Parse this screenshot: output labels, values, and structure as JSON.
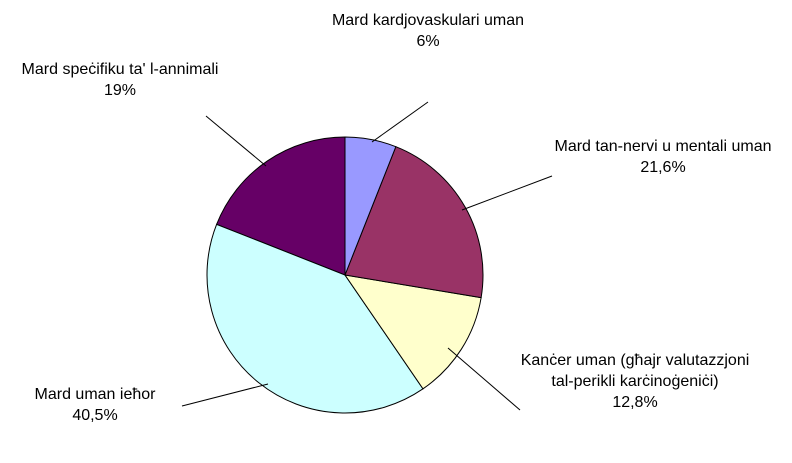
{
  "chart_data": {
    "type": "pie",
    "categories": [
      "Mard kardjovaskulari uman",
      "Mard tan-nervi u mentali uman",
      "Kanċer uman (għajr valutazzjoni tal-perikli karċinoġeniċi)",
      "Mard uman ieħor",
      "Mard speċifiku ta' l-annimali"
    ],
    "values": [
      6,
      21.6,
      12.8,
      40.5,
      19
    ],
    "value_labels": [
      "6%",
      "21,6%",
      "12,8%",
      "40,5%",
      "19%"
    ],
    "colors": [
      "#9999ff",
      "#993366",
      "#ffffcc",
      "#ccffff",
      "#660066"
    ]
  }
}
